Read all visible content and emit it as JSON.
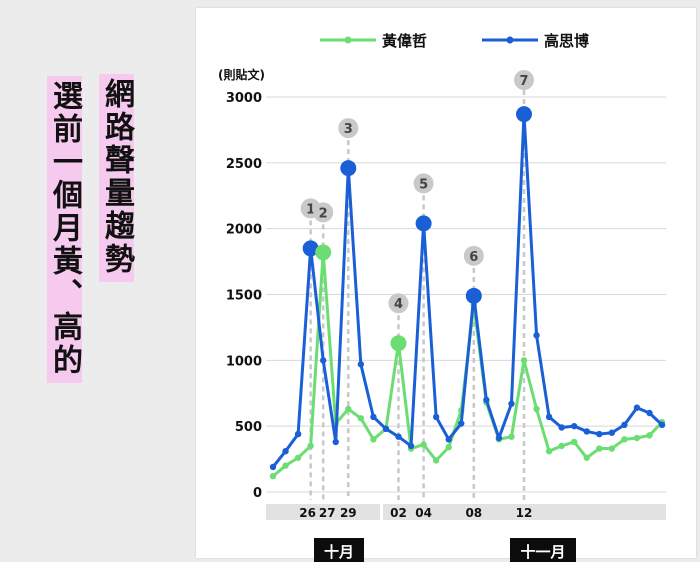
{
  "titles": {
    "line1": "網路聲量趨勢",
    "line2": "選前一個月黃、高的"
  },
  "chart_data": {
    "type": "line",
    "ylabel": "(則貼文)",
    "ylim": [
      0,
      3000
    ],
    "yticks": [
      0,
      500,
      1000,
      1500,
      2000,
      2500,
      3000
    ],
    "legend_position": "top",
    "grid": true,
    "x_tick_labels": [
      {
        "i": 3,
        "label": "26"
      },
      {
        "i": 4,
        "label": "27"
      },
      {
        "i": 6,
        "label": "29"
      },
      {
        "i": 10,
        "label": "02"
      },
      {
        "i": 12,
        "label": "04"
      },
      {
        "i": 16,
        "label": "08"
      },
      {
        "i": 20,
        "label": "12"
      }
    ],
    "months": [
      {
        "label": "十月",
        "start": 0,
        "end": 8
      },
      {
        "label": "十一月",
        "start": 9,
        "end": 31
      }
    ],
    "series": [
      {
        "name": "黃偉哲",
        "color": "#6cdd72",
        "values": [
          120,
          200,
          260,
          350,
          1820,
          520,
          630,
          560,
          400,
          480,
          1130,
          330,
          360,
          240,
          340,
          620,
          1420,
          680,
          400,
          420,
          1000,
          630,
          310,
          350,
          380,
          260,
          330,
          330,
          400,
          410,
          430,
          530
        ]
      },
      {
        "name": "高思博",
        "color": "#1a5fd6",
        "values": [
          190,
          310,
          440,
          1850,
          1000,
          380,
          2460,
          970,
          570,
          480,
          420,
          350,
          2040,
          570,
          400,
          520,
          1490,
          700,
          410,
          670,
          2870,
          1190,
          570,
          490,
          500,
          460,
          440,
          450,
          510,
          640,
          600,
          510
        ]
      }
    ],
    "highlights": [
      {
        "label": "1",
        "series": 1,
        "i": 3
      },
      {
        "label": "2",
        "series": 0,
        "i": 4
      },
      {
        "label": "3",
        "series": 1,
        "i": 6
      },
      {
        "label": "4",
        "series": 0,
        "i": 10
      },
      {
        "label": "5",
        "series": 1,
        "i": 12
      },
      {
        "label": "6",
        "series": 1,
        "i": 16
      },
      {
        "label": "7",
        "series": 1,
        "i": 20
      }
    ]
  }
}
